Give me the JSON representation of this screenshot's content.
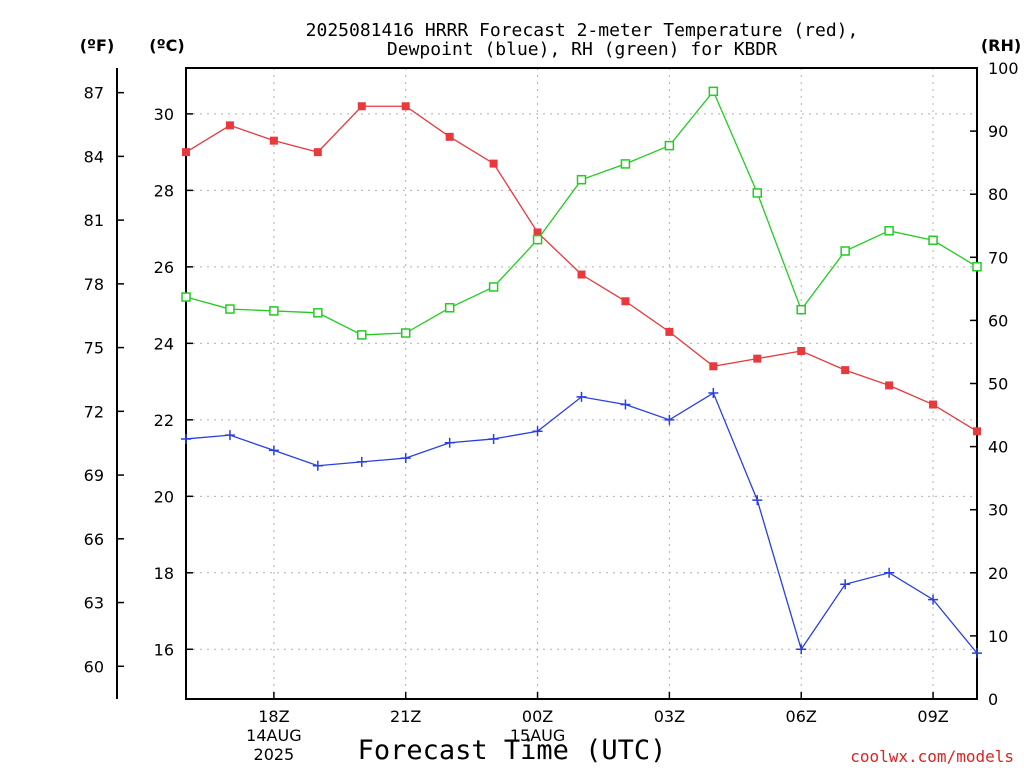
{
  "title_line1": "2025081416 HRRR Forecast 2-meter Temperature (red),",
  "title_line2": "Dewpoint (blue), RH (green) for KBDR",
  "credit": "coolwx.com/models",
  "chart_data": {
    "type": "line",
    "xlabel": "Forecast Time (UTC)",
    "x": [
      "16Z",
      "17Z",
      "18Z",
      "19Z",
      "20Z",
      "21Z",
      "22Z",
      "23Z",
      "00Z",
      "01Z",
      "02Z",
      "03Z",
      "04Z",
      "05Z",
      "06Z",
      "07Z",
      "08Z",
      "09Z",
      "10Z"
    ],
    "x_tick_labels": [
      {
        "at": "18Z",
        "lines": [
          "18Z",
          "14AUG",
          "2025"
        ]
      },
      {
        "at": "21Z",
        "lines": [
          "21Z"
        ]
      },
      {
        "at": "00Z",
        "lines": [
          "00Z",
          "15AUG"
        ]
      },
      {
        "at": "03Z",
        "lines": [
          "03Z"
        ]
      },
      {
        "at": "06Z",
        "lines": [
          "06Z"
        ]
      },
      {
        "at": "09Z",
        "lines": [
          "09Z"
        ]
      }
    ],
    "axes": {
      "fahrenheit": {
        "label": "(ºF)",
        "ticks": [
          60,
          63,
          66,
          69,
          72,
          75,
          78,
          81,
          84,
          87
        ]
      },
      "celsius": {
        "label": "(ºC)",
        "ticks": [
          16,
          18,
          20,
          22,
          24,
          26,
          28,
          30
        ],
        "ylim": [
          14.7,
          31.2
        ]
      },
      "rh": {
        "label": "(RH)",
        "ticks": [
          0,
          10,
          20,
          30,
          40,
          50,
          60,
          70,
          80,
          90,
          100
        ],
        "ylim": [
          0,
          100
        ]
      }
    },
    "grid": true,
    "series": [
      {
        "key": "temperature",
        "axis": "celsius",
        "color": "#e8393d",
        "marker": "filled-square",
        "values": [
          29.0,
          29.7,
          29.3,
          29.0,
          30.2,
          30.2,
          29.4,
          28.7,
          26.9,
          25.8,
          25.1,
          24.3,
          23.4,
          23.6,
          23.8,
          23.3,
          22.9,
          22.4,
          21.7
        ]
      },
      {
        "key": "dewpoint",
        "axis": "celsius",
        "color": "#2a3fe0",
        "marker": "plus",
        "values": [
          21.5,
          21.6,
          21.2,
          20.8,
          20.9,
          21.0,
          21.4,
          21.5,
          21.7,
          22.6,
          22.4,
          22.0,
          22.7,
          19.9,
          16.0,
          17.7,
          18.0,
          17.3,
          15.9
        ]
      },
      {
        "key": "rh",
        "axis": "rh",
        "color": "#22cc22",
        "marker": "open-square",
        "values": [
          63.7,
          61.8,
          61.5,
          61.2,
          57.7,
          58.0,
          62.0,
          65.3,
          72.8,
          82.3,
          84.8,
          87.7,
          96.3,
          80.2,
          61.7,
          71.0,
          74.2,
          72.7,
          68.5
        ]
      }
    ]
  }
}
